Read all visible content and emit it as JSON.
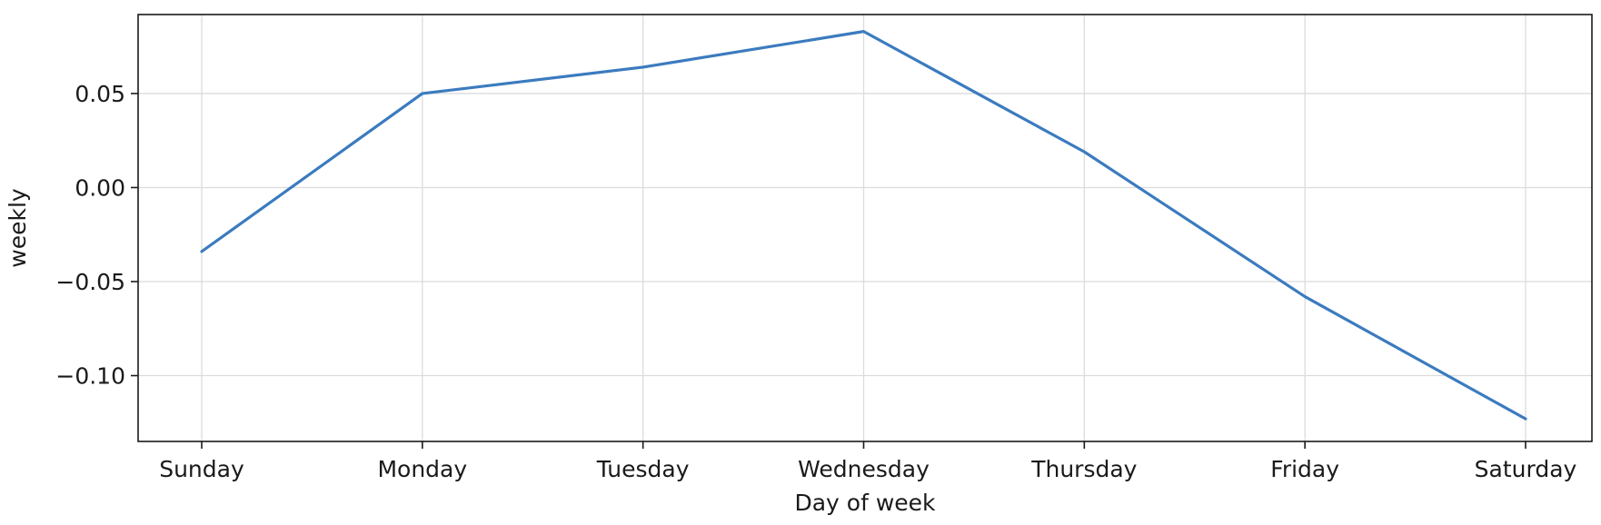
{
  "chart_data": {
    "type": "line",
    "title": "",
    "xlabel": "Day of week",
    "ylabel": "weekly",
    "categories": [
      "Sunday",
      "Monday",
      "Tuesday",
      "Wednesday",
      "Thursday",
      "Friday",
      "Saturday"
    ],
    "series": [
      {
        "values": [
          -0.034,
          0.05,
          0.064,
          0.083,
          0.019,
          -0.058,
          -0.123
        ],
        "color": "#3b7bbf"
      }
    ],
    "yticks": [
      0.05,
      0.0,
      -0.05,
      -0.1
    ],
    "ytick_labels": [
      "0.05",
      "0.00",
      "−0.05",
      "−0.10"
    ],
    "ylim": [
      -0.135,
      0.092
    ],
    "grid": true
  }
}
